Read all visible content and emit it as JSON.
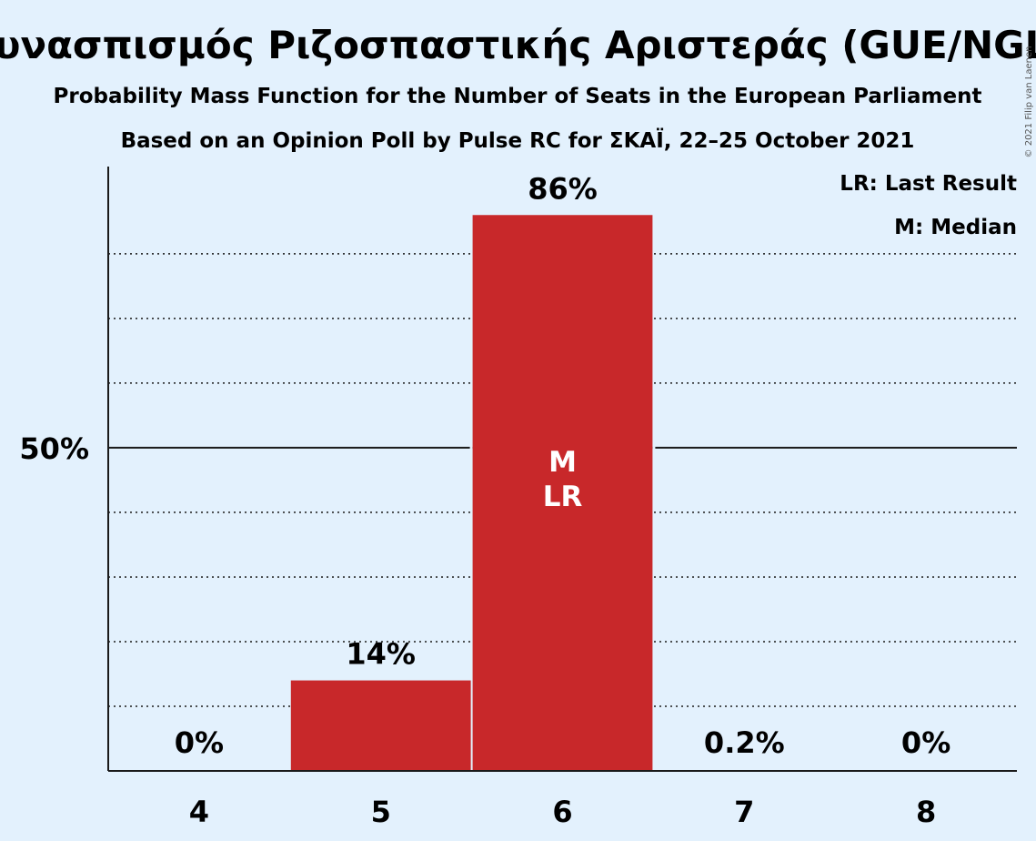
{
  "chart_data": {
    "type": "bar",
    "title": "Συνασπισμός Ριζοσπαστικής Αριστεράς (GUE/NGL)",
    "subtitle_line1": "Probability Mass Function for the Number of Seats in the European Parliament",
    "subtitle_line2": "Based on an Opinion Poll by Pulse RC for ΣΚΑΪ, 22–25 October 2021",
    "categories": [
      "4",
      "5",
      "6",
      "7",
      "8"
    ],
    "values": [
      0,
      14,
      86,
      0.2,
      0
    ],
    "value_labels": [
      "0%",
      "14%",
      "86%",
      "0.2%",
      "0%"
    ],
    "ylim": [
      0,
      93.5
    ],
    "y_ticks": [
      {
        "value": 50,
        "label": "50%"
      }
    ],
    "minor_gridlines": [
      10,
      20,
      30,
      40,
      60,
      70,
      80
    ],
    "median_category": "6",
    "last_result_category": "6",
    "bar_annotation": [
      "M",
      "LR"
    ],
    "legend": [
      "LR: Last Result",
      "M: Median"
    ],
    "legend_position": "top-right",
    "bar_color": "#c8282a",
    "copyright": "© 2021 Filip van Laenen"
  }
}
